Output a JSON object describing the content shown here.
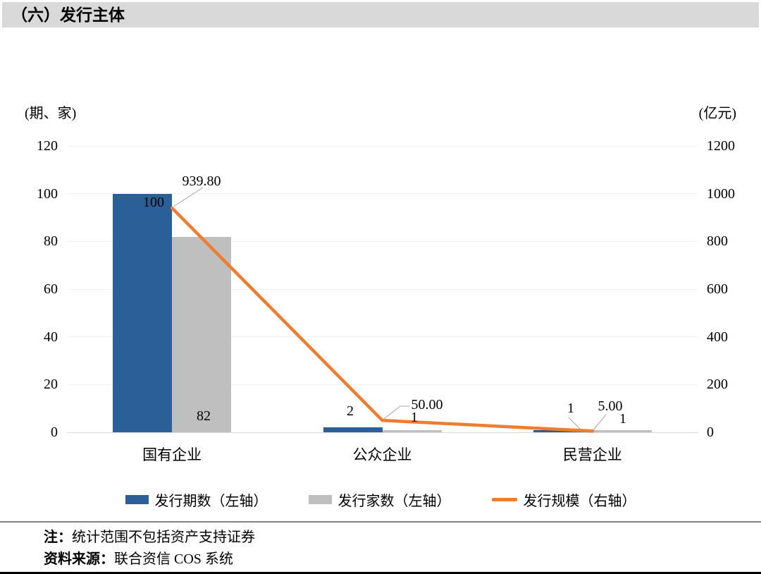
{
  "title": "（六）发行主体",
  "chart": {
    "left_unit": "(期、家)",
    "right_unit": "(亿元)"
  },
  "chart_data": {
    "type": "bar+line",
    "categories": [
      "国有企业",
      "公众企业",
      "民营企业"
    ],
    "series": [
      {
        "name": "发行期数（左轴）",
        "type": "bar",
        "axis": "left",
        "color": "#2B5F98",
        "values": [
          100,
          2,
          1
        ],
        "labels": [
          "100",
          "2",
          "1"
        ]
      },
      {
        "name": "发行家数（左轴）",
        "type": "bar",
        "axis": "left",
        "color": "#BFBFBF",
        "values": [
          82,
          1,
          1
        ],
        "labels": [
          "82",
          "1",
          "1"
        ]
      },
      {
        "name": "发行规模（右轴）",
        "type": "line",
        "axis": "right",
        "color": "#ED7D31",
        "values": [
          939.8,
          50.0,
          5.0
        ],
        "labels": [
          "939.80",
          "50.00",
          "5.00"
        ]
      }
    ],
    "left_axis": {
      "unit": "(期、家)",
      "min": 0,
      "max": 120,
      "step": 20,
      "ticks": [
        "0",
        "20",
        "40",
        "60",
        "80",
        "100",
        "120"
      ]
    },
    "right_axis": {
      "unit": "(亿元)",
      "min": 0,
      "max": 1200,
      "step": 200,
      "ticks": [
        "0",
        "200",
        "400",
        "600",
        "800",
        "1000",
        "1200"
      ]
    },
    "grid": true,
    "legend_position": "bottom",
    "colors": {
      "bar1": "#2B5F98",
      "bar2": "#BFBFBF",
      "line": "#ED7D31",
      "gridline": "#F2F2F2",
      "baseline": "#D9D9D9",
      "leader": "#A6A6A6",
      "title_bg": "#D9D9D9"
    }
  },
  "notes": {
    "note_prefix": "注：",
    "note_text": "统计范围不包括资产支持证券",
    "source_prefix": "资料来源：",
    "source_text": "联合资信 COS 系统"
  }
}
